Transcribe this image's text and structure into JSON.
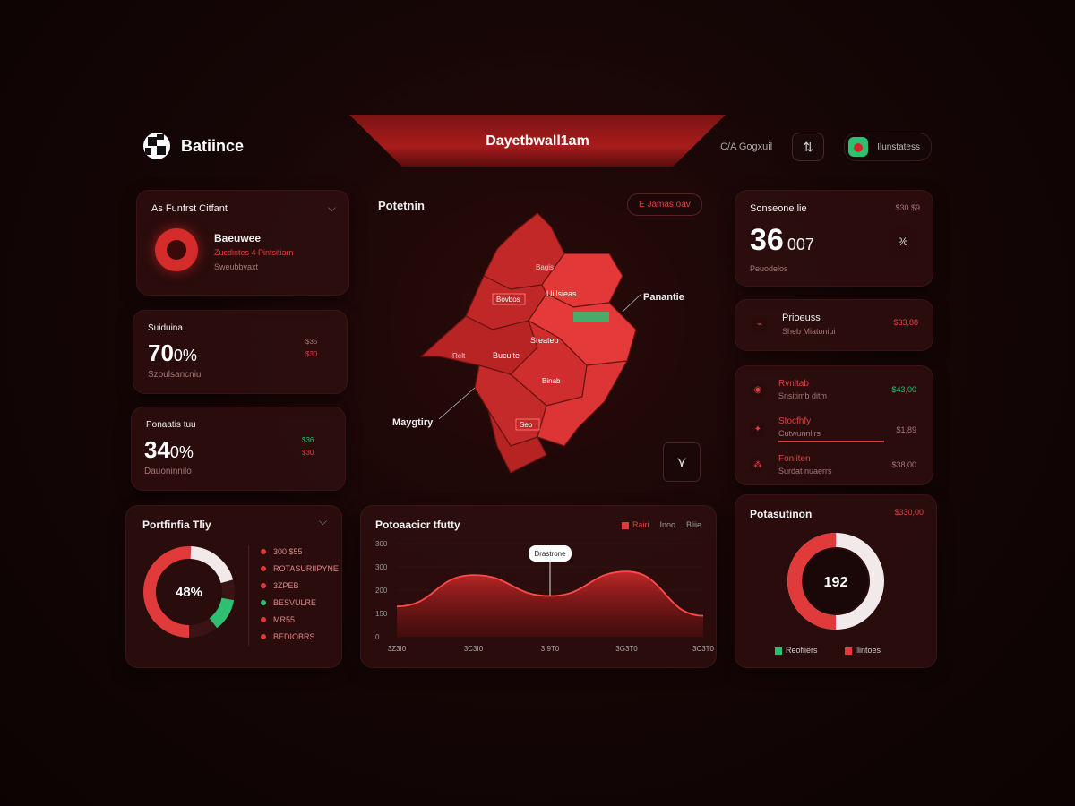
{
  "header": {
    "logo_text": "Batiince",
    "title": "Dayetbwall1am",
    "link_text": "C/A Gogxuil",
    "user_name": "Ilunstatess"
  },
  "cards": {
    "profile": {
      "title": "As Funfrst Citfant",
      "name": "Baeuwee",
      "line1": "Zucdintes 4 Pintsitiarn",
      "line2": "Sweubbvaxt"
    },
    "stat1": {
      "title": "Suiduina",
      "value": "70",
      "unit": "0%",
      "sub": "Szoulsancniu",
      "delta_up": "$35",
      "delta_down": "$30"
    },
    "stat2": {
      "title": "Ponaatis tuu",
      "value": "34",
      "unit": "0%",
      "sub": "Dauoninnilo",
      "delta_up": "$36",
      "delta_down": "$30"
    },
    "donut": {
      "title": "Portfinfia Tliy",
      "center": "48%",
      "legend": [
        {
          "label": "300 $55",
          "color": "#e03a3a"
        },
        {
          "label": "ROTASURIIPYNE",
          "color": "#e03a3a"
        },
        {
          "label": "3ZPEB",
          "color": "#e03a3a"
        },
        {
          "label": "BESVULRE",
          "color": "#2fbf71"
        },
        {
          "label": "MR55",
          "color": "#e03a3a"
        },
        {
          "label": "BEDIOBRS",
          "color": "#e03a3a"
        }
      ]
    }
  },
  "map": {
    "title": "Potetnin",
    "pill": "E Jamas oav",
    "labels": {
      "right": "Panantie",
      "left": "Maygtiry",
      "c1": "Bagis",
      "c2": "Uillsieas",
      "c3": "Sreateb",
      "c4": "Bucuite",
      "c5": "Relt",
      "c6": "Bovbos",
      "c7": "Binab",
      "c8": "Seb"
    }
  },
  "area_chart": {
    "title": "Potoaacicr tfutty",
    "legend": [
      "Rairi",
      "Inoo",
      "Bliie"
    ],
    "callout": "Drastrone",
    "y_ticks": [
      "300",
      "300",
      "200",
      "150",
      "0"
    ],
    "x_ticks": [
      "3Z3I0",
      "3C3I0",
      "3I9T0",
      "3G3T0",
      "3C3T0"
    ]
  },
  "right": {
    "kpi": {
      "title": "Sonseone lie",
      "value": "36",
      "suffix": "007",
      "sub": "Peuodelos",
      "tag": "$30 $9",
      "badge": "%"
    },
    "row_card": {
      "title": "Prioeuss",
      "sub": "Sheb Miatoniui",
      "value": "$33,88"
    },
    "list": [
      {
        "title": "Rvnltab",
        "sub": "Snsitimb ditm",
        "value": "$43,00"
      },
      {
        "title": "Stocfhfy",
        "sub": "Cutwunnllrs",
        "value": "$1,89"
      },
      {
        "title": "Fonliten",
        "sub": "Surdat nuaerrs",
        "value": "$38,00"
      }
    ],
    "ring": {
      "title": "Potasutinon",
      "tag": "$330,00",
      "center": "192",
      "legend": [
        "Reofiiers",
        "Ilintoes"
      ]
    }
  },
  "chart_data": {
    "type": "area",
    "title": "Potoaacicr tfutty",
    "x": [
      "3Z3I0",
      "3C3I0",
      "3I9T0",
      "3G3T0",
      "3C3T0"
    ],
    "series": [
      {
        "name": "Rairi",
        "values": [
          130,
          265,
          175,
          280,
          90
        ]
      }
    ],
    "ylim": [
      0,
      400
    ]
  },
  "colors": {
    "accent": "#e03a3a",
    "positive": "#2fbf71",
    "background": "#140505"
  }
}
